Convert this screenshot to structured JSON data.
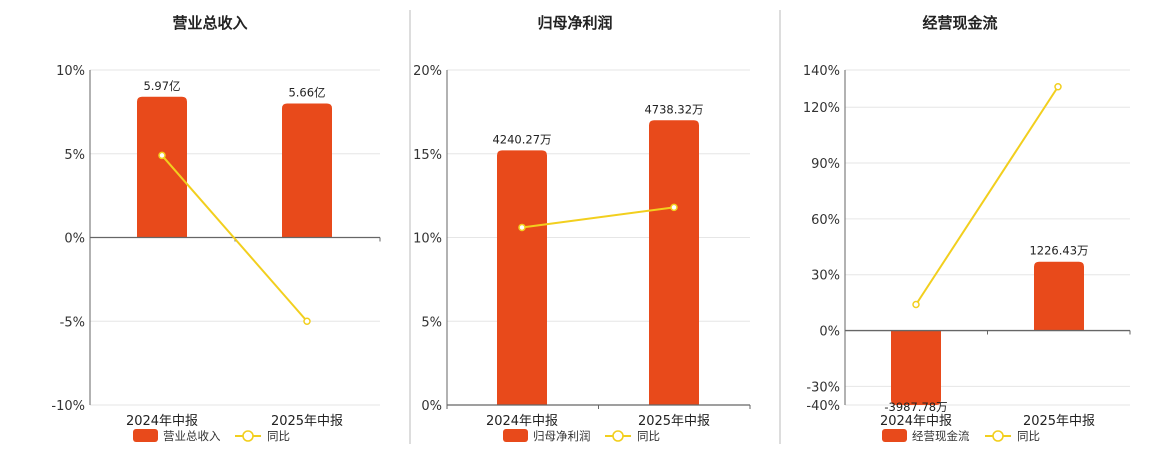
{
  "colors": {
    "bar": "#E84A1B",
    "line": "#F2CF1E",
    "grid": "#E6E6E6",
    "axis": "#666666",
    "divider": "#BBBBBB"
  },
  "chart_data": [
    {
      "type": "bar",
      "title": "营业总收入",
      "categories": [
        "2024年中报",
        "2025年中报"
      ],
      "ylim": [
        -10,
        10
      ],
      "yticks": [
        10,
        5,
        0,
        -5,
        -10
      ],
      "tick_labels": [
        "10%",
        "5%",
        "0%",
        "-5%",
        "-10%"
      ],
      "series": [
        {
          "name": "营业总收入",
          "type": "bar",
          "values": [
            8.4,
            8.0
          ],
          "labels": [
            "5.97亿",
            "5.66亿"
          ]
        },
        {
          "name": "同比",
          "type": "line",
          "values": [
            4.9,
            -5.0
          ]
        }
      ],
      "legend": "bottom-center",
      "grid": true
    },
    {
      "type": "bar",
      "title": "归母净利润",
      "categories": [
        "2024年中报",
        "2025年中报"
      ],
      "ylim": [
        0,
        20
      ],
      "yticks": [
        20,
        15,
        10,
        5,
        0
      ],
      "tick_labels": [
        "20%",
        "15%",
        "10%",
        "5%",
        "0%"
      ],
      "series": [
        {
          "name": "归母净利润",
          "type": "bar",
          "values": [
            15.2,
            17.0
          ],
          "labels": [
            "4240.27万",
            "4738.32万"
          ]
        },
        {
          "name": "同比",
          "type": "line",
          "values": [
            10.6,
            11.8
          ]
        }
      ],
      "legend": "bottom-center",
      "grid": true
    },
    {
      "type": "bar",
      "title": "经营现金流",
      "categories": [
        "2024年中报",
        "2025年中报"
      ],
      "ylim": [
        -40,
        140
      ],
      "yticks": [
        140,
        120,
        90,
        60,
        30,
        0,
        -30,
        -40
      ],
      "tick_labels": [
        "140%",
        "120%",
        "90%",
        "60%",
        "30%",
        "0%",
        "-30%",
        "-40%"
      ],
      "series": [
        {
          "name": "经营现金流",
          "type": "bar",
          "values": [
            -40,
            37
          ],
          "labels": [
            "-3987.78万",
            "1226.43万"
          ]
        },
        {
          "name": "同比",
          "type": "line",
          "values": [
            14,
            131
          ]
        }
      ],
      "legend": "bottom-center",
      "grid": true
    }
  ]
}
